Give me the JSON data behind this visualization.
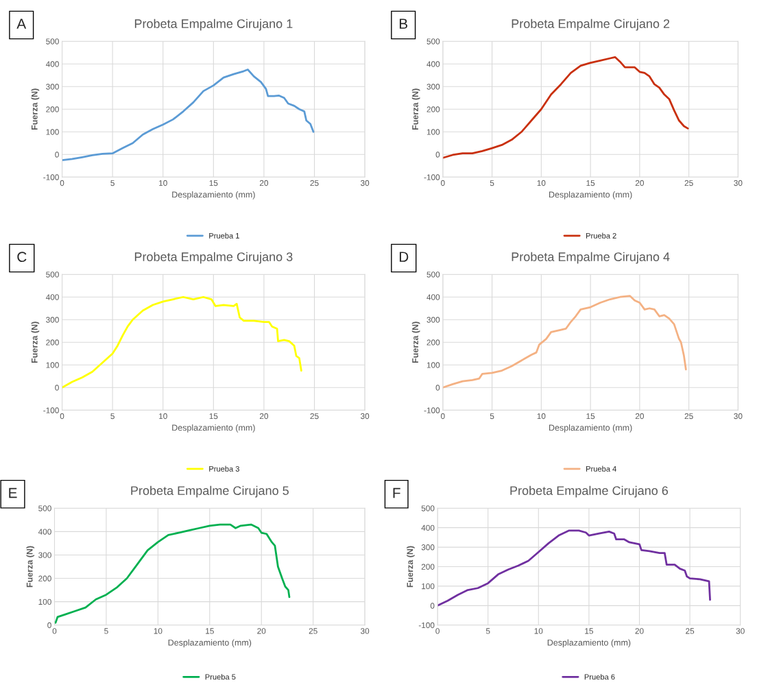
{
  "chart_data": [
    {
      "type": "line",
      "title": "Probeta Empalme Cirujano 1",
      "xlabel": "Desplazamiento (mm)",
      "ylabel": "Fuerza (N)",
      "annotations": [
        "A"
      ],
      "xlim": [
        0,
        30
      ],
      "xticks": [
        0,
        5,
        10,
        15,
        20,
        25,
        30
      ],
      "ylim": [
        -100,
        500
      ],
      "yticks": [
        -100,
        0,
        100,
        200,
        300,
        400,
        500
      ],
      "grid": true,
      "legend": "bottom",
      "series": [
        {
          "name": "Prueba 1",
          "color": "#5b9bd5",
          "x": [
            0,
            1,
            2,
            3,
            4,
            5,
            6,
            7,
            8,
            9,
            10,
            11,
            12,
            13,
            14,
            15,
            16,
            17,
            18,
            18.4,
            19,
            19.7,
            20.2,
            20.4,
            21,
            21.5,
            22,
            22.4,
            23,
            23.5,
            24,
            24.2,
            24.6,
            24.9
          ],
          "values": [
            -25,
            -20,
            -12,
            -3,
            3,
            5,
            28,
            50,
            88,
            112,
            132,
            155,
            190,
            230,
            280,
            305,
            340,
            355,
            368,
            375,
            345,
            320,
            290,
            258,
            258,
            260,
            250,
            225,
            215,
            200,
            190,
            150,
            135,
            100
          ]
        }
      ]
    },
    {
      "type": "line",
      "title": "Probeta Empalme Cirujano 2",
      "xlabel": "Desplazamiento (mm)",
      "ylabel": "Fuerza (N)",
      "annotations": [
        "B"
      ],
      "xlim": [
        0,
        30
      ],
      "xticks": [
        0,
        5,
        10,
        15,
        20,
        25,
        30
      ],
      "ylim": [
        -100,
        500
      ],
      "yticks": [
        -100,
        0,
        100,
        200,
        300,
        400,
        500
      ],
      "grid": true,
      "legend": "bottom",
      "series": [
        {
          "name": "Prueba 2",
          "color": "#c9300e",
          "x": [
            0,
            1,
            2,
            3,
            4,
            5,
            6,
            7,
            8,
            9,
            10,
            11,
            12,
            13,
            14,
            15,
            16,
            17,
            17.5,
            18,
            18.5,
            19.5,
            20,
            20.5,
            21,
            21.5,
            22,
            22.5,
            23,
            23.5,
            24,
            24.5,
            24.9
          ],
          "values": [
            -15,
            -2,
            5,
            5,
            15,
            28,
            42,
            65,
            100,
            150,
            200,
            265,
            310,
            360,
            392,
            405,
            415,
            425,
            430,
            410,
            385,
            385,
            365,
            360,
            345,
            310,
            295,
            265,
            245,
            195,
            150,
            125,
            115
          ]
        }
      ]
    },
    {
      "type": "line",
      "title": "Probeta Empalme Cirujano 3",
      "xlabel": "Desplazamiento (mm)",
      "ylabel": "Fuerza (N)",
      "annotations": [
        "C"
      ],
      "xlim": [
        0,
        30
      ],
      "xticks": [
        0,
        5,
        10,
        15,
        20,
        25,
        30
      ],
      "ylim": [
        -100,
        500
      ],
      "yticks": [
        -100,
        0,
        100,
        200,
        300,
        400,
        500
      ],
      "grid": true,
      "legend": "bottom",
      "series": [
        {
          "name": "Prueba 3",
          "color": "#ffff00",
          "x": [
            0,
            1,
            2,
            3,
            4,
            5,
            5.5,
            6,
            6.5,
            7,
            8,
            9,
            10,
            11,
            12,
            13,
            14,
            14.8,
            15.2,
            16,
            17,
            17.3,
            17.6,
            18,
            19,
            20,
            20.5,
            20.8,
            21.3,
            21.4,
            22,
            22.5,
            23,
            23.2,
            23.5,
            23.7
          ],
          "values": [
            0,
            25,
            45,
            70,
            110,
            150,
            185,
            230,
            270,
            300,
            340,
            365,
            380,
            390,
            400,
            390,
            400,
            390,
            360,
            365,
            360,
            370,
            310,
            295,
            295,
            290,
            290,
            270,
            260,
            205,
            210,
            205,
            185,
            140,
            130,
            75
          ]
        }
      ]
    },
    {
      "type": "line",
      "title": "Probeta Empalme Cirujano 4",
      "xlabel": "Desplazamiento (mm)",
      "ylabel": "Fuerza (N)",
      "annotations": [
        "D"
      ],
      "xlim": [
        0,
        30
      ],
      "xticks": [
        0,
        5,
        10,
        15,
        20,
        25,
        30
      ],
      "ylim": [
        -100,
        500
      ],
      "yticks": [
        -100,
        0,
        100,
        200,
        300,
        400,
        500
      ],
      "grid": true,
      "legend": "bottom",
      "series": [
        {
          "name": "Prueba 4",
          "color": "#f4b183",
          "x": [
            0,
            1,
            2,
            3,
            3.7,
            4,
            5,
            6,
            7,
            8,
            9,
            9.5,
            9.8,
            10.5,
            11,
            12,
            12.5,
            13,
            13.5,
            14,
            15,
            16,
            17,
            18,
            19,
            19.5,
            20,
            20.5,
            21,
            21.5,
            22,
            22.5,
            23,
            23.5,
            24,
            24.2,
            24.5,
            24.7
          ],
          "values": [
            0,
            15,
            28,
            33,
            40,
            60,
            65,
            75,
            95,
            120,
            145,
            155,
            190,
            215,
            245,
            255,
            260,
            290,
            315,
            345,
            355,
            375,
            390,
            400,
            405,
            385,
            375,
            345,
            350,
            345,
            315,
            320,
            305,
            280,
            215,
            200,
            140,
            80
          ]
        }
      ]
    },
    {
      "type": "line",
      "title": "Probeta Empalme Cirujano 5",
      "xlabel": "Desplazamiento (mm)",
      "ylabel": "Fuerza (N)",
      "annotations": [
        "E"
      ],
      "xlim": [
        0,
        30
      ],
      "xticks": [
        0,
        5,
        10,
        15,
        20,
        25,
        30
      ],
      "ylim": [
        0,
        500
      ],
      "yticks": [
        0,
        100,
        200,
        300,
        400,
        500
      ],
      "grid": true,
      "legend": "bottom",
      "series": [
        {
          "name": "Prueba 5",
          "color": "#00b050",
          "x": [
            0.1,
            0.3,
            1,
            2,
            3,
            4,
            5,
            6,
            7,
            8,
            9,
            10,
            11,
            12,
            13,
            14,
            15,
            16,
            17,
            17.5,
            18,
            19,
            19.7,
            20,
            20.5,
            21,
            21.3,
            21.6,
            22,
            22.3,
            22.6,
            22.7
          ],
          "values": [
            10,
            35,
            45,
            60,
            75,
            110,
            130,
            160,
            200,
            260,
            320,
            355,
            385,
            395,
            405,
            415,
            425,
            430,
            430,
            415,
            425,
            430,
            415,
            395,
            390,
            355,
            340,
            250,
            200,
            165,
            150,
            120
          ]
        }
      ]
    },
    {
      "type": "line",
      "title": "Probeta Empalme Cirujano 6",
      "xlabel": "Desplazamiento (mm)",
      "ylabel": "Fuerza (N)",
      "annotations": [
        "F"
      ],
      "xlim": [
        0,
        30
      ],
      "xticks": [
        0,
        5,
        10,
        15,
        20,
        25,
        30
      ],
      "ylim": [
        -100,
        500
      ],
      "yticks": [
        -100,
        0,
        100,
        200,
        300,
        400,
        500
      ],
      "grid": true,
      "legend": "bottom",
      "series": [
        {
          "name": "Prueba 6",
          "color": "#7030a0",
          "x": [
            0,
            1,
            2,
            3,
            4,
            5,
            6,
            7,
            8,
            9,
            10,
            11,
            12,
            13,
            14,
            14.7,
            15,
            16,
            17,
            17.5,
            17.7,
            18.5,
            19,
            20,
            20.2,
            21,
            22,
            22.5,
            22.7,
            23.5,
            24,
            24.5,
            24.7,
            25,
            26,
            26.9,
            27
          ],
          "values": [
            0,
            25,
            55,
            80,
            90,
            115,
            160,
            185,
            205,
            230,
            275,
            320,
            360,
            385,
            385,
            375,
            360,
            370,
            380,
            370,
            340,
            340,
            325,
            315,
            285,
            280,
            270,
            270,
            210,
            210,
            190,
            180,
            150,
            140,
            135,
            125,
            30
          ]
        }
      ]
    }
  ]
}
